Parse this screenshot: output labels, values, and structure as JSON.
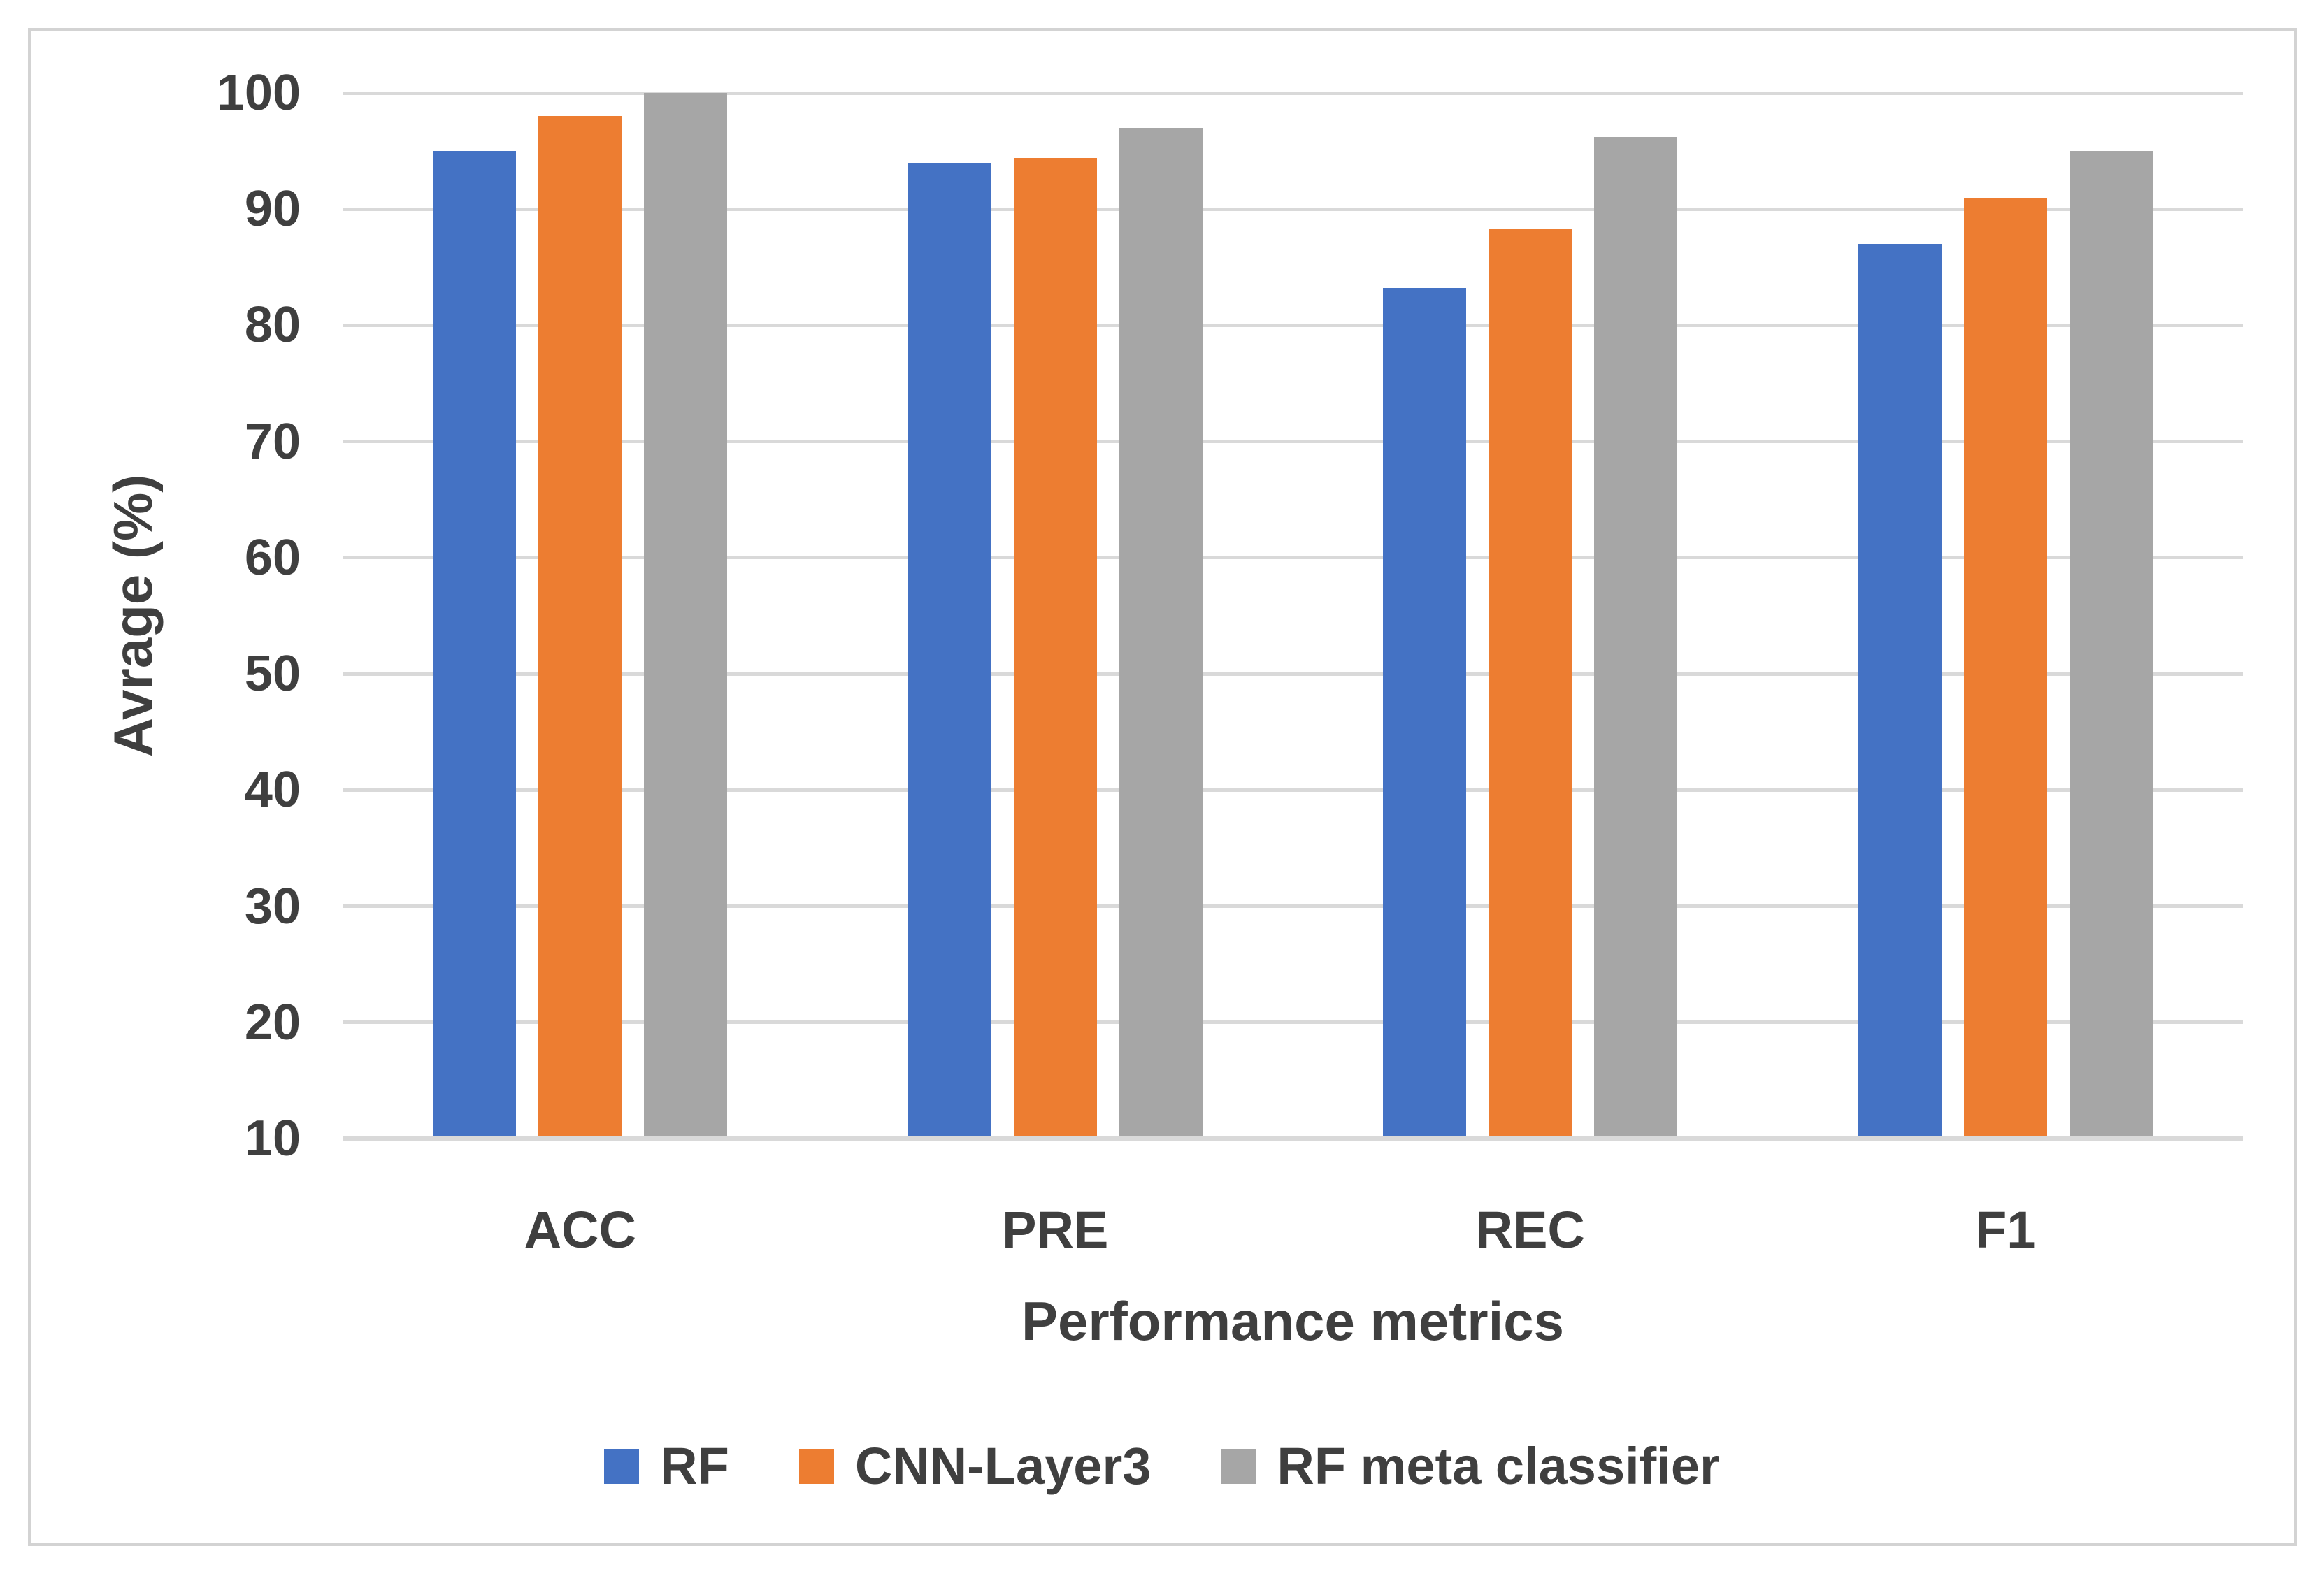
{
  "chart_data": {
    "type": "bar",
    "title": "",
    "categories": [
      "ACC",
      "PRE",
      "REC",
      "F1"
    ],
    "series": [
      {
        "name": "RF",
        "color": "#4472c4",
        "values": [
          95,
          94,
          83.2,
          87
        ]
      },
      {
        "name": "CNN-Layer3",
        "color": "#ed7d31",
        "values": [
          98,
          94.4,
          88.3,
          91
        ]
      },
      {
        "name": "RF meta classifier",
        "color": "#a6a6a6",
        "values": [
          100,
          97,
          96.2,
          95
        ]
      }
    ],
    "xlabel": "Performance metrics",
    "ylabel": "Avrage (%)",
    "ylim": [
      10,
      100
    ],
    "yticks": [
      100,
      90,
      80,
      70,
      60,
      50,
      40,
      30,
      20,
      10
    ],
    "grid": "horizontal",
    "legend_position": "bottom",
    "bar_baseline": 10
  },
  "colors": {
    "background": "#ffffff",
    "frame_border": "#d3d3d3",
    "gridline": "#d9d9d9",
    "axis_line": "#d9d9d9",
    "text": "#3f3f3f"
  }
}
